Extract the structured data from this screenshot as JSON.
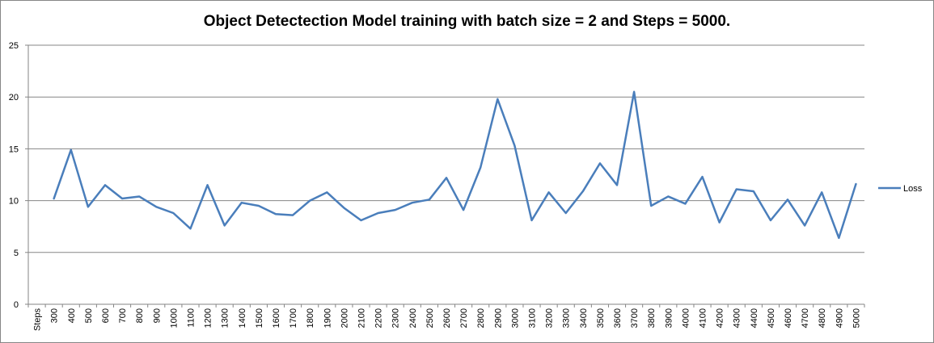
{
  "chart_data": {
    "type": "line",
    "title": "Object Detectection Model training with batch size = 2 and Steps = 5000.",
    "xlabel": "",
    "ylabel": "",
    "ylim": [
      0,
      25
    ],
    "yticks": [
      0,
      5,
      10,
      15,
      20,
      25
    ],
    "grid": true,
    "legend_position": "right",
    "categories": [
      "Steps",
      "300",
      "400",
      "500",
      "600",
      "700",
      "800",
      "900",
      "1000",
      "1100",
      "1200",
      "1300",
      "1400",
      "1500",
      "1600",
      "1700",
      "1800",
      "1900",
      "2000",
      "2100",
      "2200",
      "2300",
      "2400",
      "2500",
      "2600",
      "2700",
      "2800",
      "2900",
      "3000",
      "3100",
      "3200",
      "3300",
      "3400",
      "3500",
      "3600",
      "3700",
      "3800",
      "3900",
      "4000",
      "4100",
      "4200",
      "4300",
      "4400",
      "4500",
      "4600",
      "4700",
      "4800",
      "4900",
      "5000"
    ],
    "series": [
      {
        "name": "Loss",
        "color": "#4a7ebb",
        "values": [
          null,
          10.2,
          14.9,
          9.4,
          11.5,
          10.2,
          10.4,
          9.4,
          8.8,
          7.3,
          11.5,
          7.6,
          9.8,
          9.5,
          8.7,
          8.6,
          10.0,
          10.8,
          9.3,
          8.1,
          8.8,
          9.1,
          9.8,
          10.1,
          12.2,
          9.1,
          13.2,
          19.8,
          15.3,
          8.1,
          10.8,
          8.8,
          10.9,
          13.6,
          11.5,
          20.5,
          9.5,
          10.4,
          9.7,
          12.3,
          7.9,
          11.1,
          10.9,
          8.1,
          10.1,
          7.6,
          10.8,
          6.4,
          11.6
        ]
      }
    ]
  }
}
